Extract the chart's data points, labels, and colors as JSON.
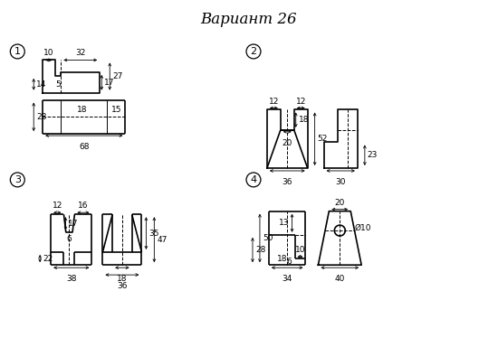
{
  "title": "Вариант 26",
  "bg": "#ffffff",
  "lc": "#000000",
  "fs": 6.5,
  "fs_title": 12,
  "lw": 1.2,
  "lw_d": 0.7
}
